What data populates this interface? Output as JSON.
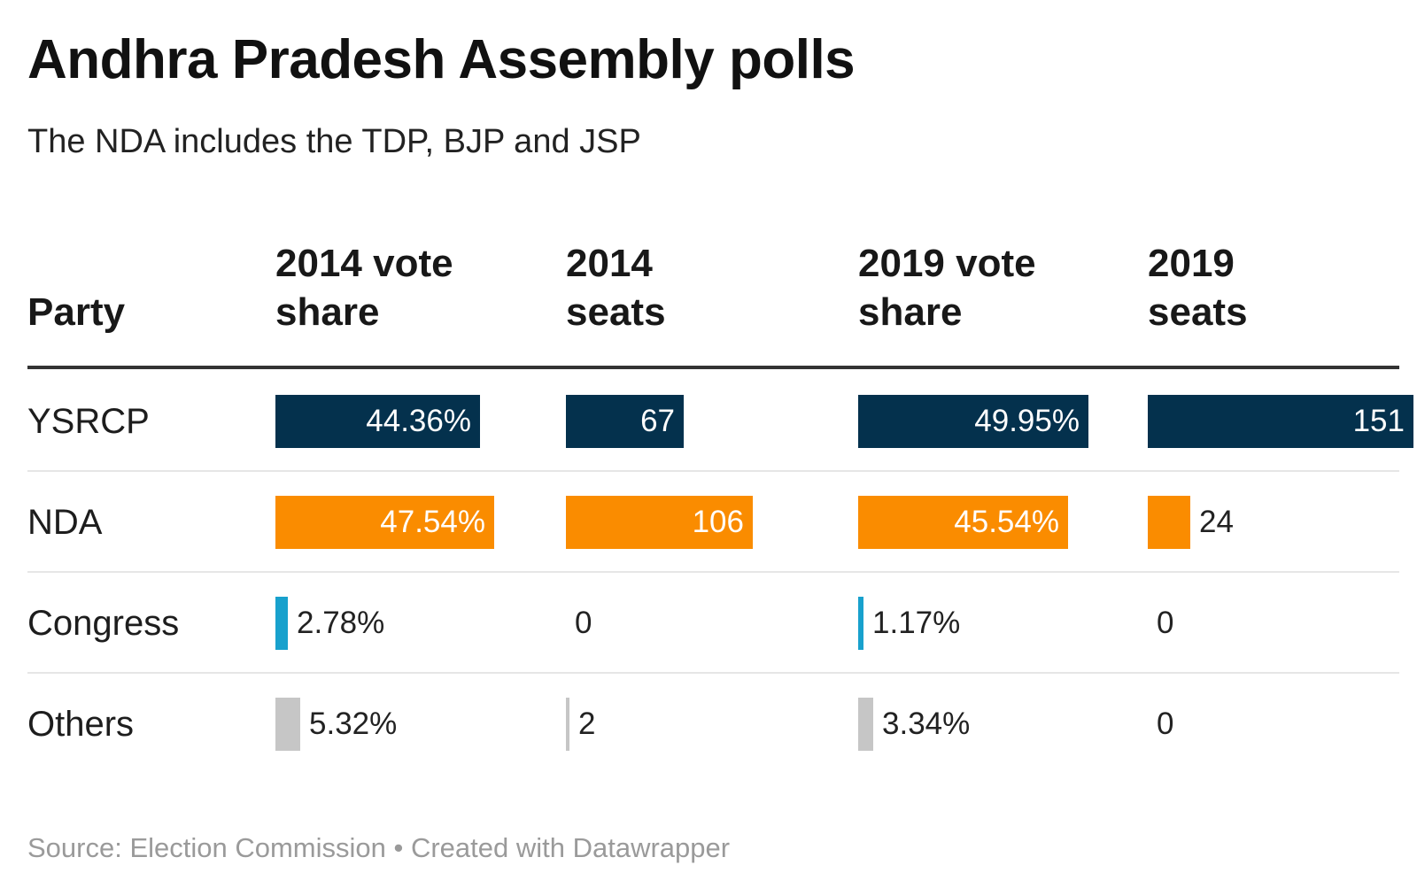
{
  "title": "Andhra Pradesh Assembly polls",
  "subtitle": "The NDA includes the TDP, BJP and JSP",
  "source": "Source: Election Commission • Created with Datawrapper",
  "chart_data": {
    "type": "table",
    "columns": [
      {
        "key": "party",
        "label": "Party"
      },
      {
        "key": "vote2014",
        "label": "2014 vote share",
        "lines": [
          "2014 vote",
          "share"
        ],
        "unit": "%",
        "max": 50
      },
      {
        "key": "seats2014",
        "label": "2014 seats",
        "lines": [
          "2014",
          "seats"
        ],
        "unit": "",
        "max": 151
      },
      {
        "key": "vote2019",
        "label": "2019 vote share",
        "lines": [
          "2019 vote",
          "share"
        ],
        "unit": "%",
        "max": 50
      },
      {
        "key": "seats2019",
        "label": "2019 seats",
        "lines": [
          "2019",
          "seats"
        ],
        "unit": "",
        "max": 151
      }
    ],
    "rows": [
      {
        "party": "YSRCP",
        "color": "#04314d",
        "vote2014": "44.36%",
        "seats2014": "67",
        "vote2019": "49.95%",
        "seats2019": "151"
      },
      {
        "party": "NDA",
        "color": "#fa8c00",
        "vote2014": "47.54%",
        "seats2014": "106",
        "vote2019": "45.54%",
        "seats2019": "24"
      },
      {
        "party": "Congress",
        "color": "#18a1cd",
        "vote2014": "2.78%",
        "seats2014": "0",
        "vote2019": "1.17%",
        "seats2019": "0"
      },
      {
        "party": "Others",
        "color": "#c6c6c6",
        "vote2014": "5.32%",
        "seats2014": "2",
        "vote2019": "3.34%",
        "seats2019": "0"
      }
    ]
  }
}
